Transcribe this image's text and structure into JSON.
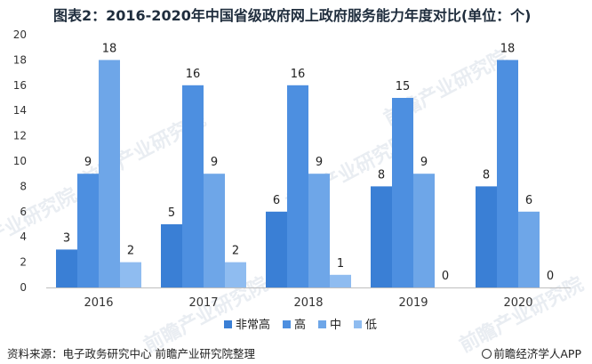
{
  "title": "图表2：2016-2020年中国省级政府网上政府服务能力年度对比(单位：个)",
  "footer": {
    "source": "资料来源：电子政务研究中心 前瞻产业研究院整理",
    "brand": "前瞻经济学人APP"
  },
  "watermark": {
    "text": "前瞻产业研究院"
  },
  "colors": {
    "axis": "#bfbfbf",
    "tick_text": "#333333",
    "label_text": "#222222"
  },
  "chart_data": {
    "type": "bar",
    "title": "图表2：2016-2020年中国省级政府网上政府服务能力年度对比(单位：个)",
    "xlabel": "",
    "ylabel": "",
    "categories": [
      "2016",
      "2017",
      "2018",
      "2019",
      "2020"
    ],
    "ylim": [
      0,
      20
    ],
    "yticks": [
      0,
      2,
      4,
      6,
      8,
      10,
      12,
      14,
      16,
      18,
      20
    ],
    "grid": false,
    "legend_position": "bottom",
    "series": [
      {
        "name": "非常高",
        "color": "#3a7fd5",
        "values": [
          3,
          5,
          6,
          8,
          8
        ]
      },
      {
        "name": "高",
        "color": "#4d8fe0",
        "values": [
          9,
          16,
          16,
          15,
          18
        ]
      },
      {
        "name": "中",
        "color": "#6ea6e8",
        "values": [
          18,
          9,
          9,
          9,
          6
        ]
      },
      {
        "name": "低",
        "color": "#8fbcf0",
        "values": [
          2,
          2,
          1,
          0,
          0
        ]
      }
    ]
  }
}
